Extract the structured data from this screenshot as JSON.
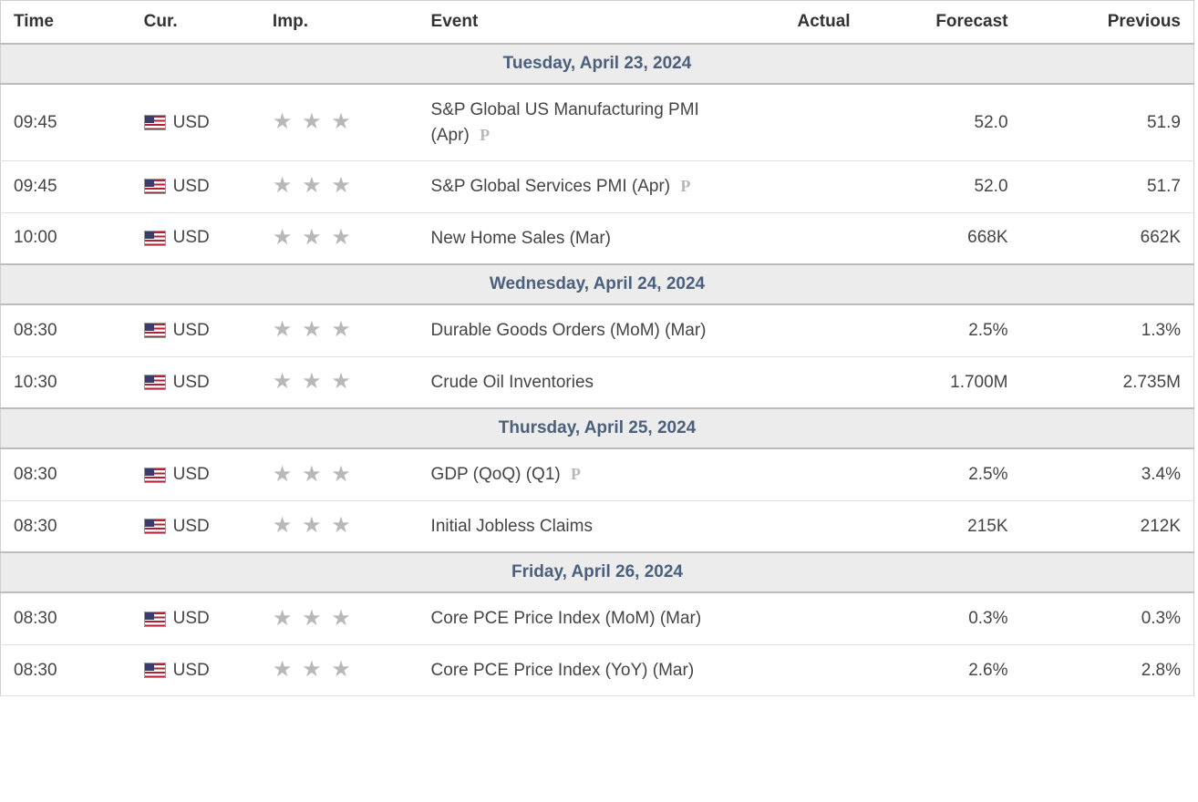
{
  "columns": {
    "time": "Time",
    "cur": "Cur.",
    "imp": "Imp.",
    "event": "Event",
    "actual": "Actual",
    "forecast": "Forecast",
    "previous": "Previous"
  },
  "colors": {
    "header_text": "#333333",
    "date_bg": "#ececec",
    "date_text": "#4b607c",
    "date_border": "#bcbcbc",
    "row_border": "#e0e0e0",
    "cell_text": "#444444",
    "star_color": "#b8b8b8",
    "p_badge_color": "#b8b8b8",
    "flag_red": "#b22234",
    "flag_white": "#ffffff",
    "flag_blue": "#3c3b6e"
  },
  "days": [
    {
      "date": "Tuesday, April 23, 2024",
      "events": [
        {
          "time": "09:45",
          "currency": "USD",
          "importance": 3,
          "event": "S&P Global US Manufacturing PMI (Apr)",
          "preliminary": true,
          "actual": "",
          "forecast": "52.0",
          "previous": "51.9"
        },
        {
          "time": "09:45",
          "currency": "USD",
          "importance": 3,
          "event": "S&P Global Services PMI (Apr)",
          "preliminary": true,
          "actual": "",
          "forecast": "52.0",
          "previous": "51.7"
        },
        {
          "time": "10:00",
          "currency": "USD",
          "importance": 3,
          "event": "New Home Sales (Mar)",
          "preliminary": false,
          "actual": "",
          "forecast": "668K",
          "previous": "662K"
        }
      ]
    },
    {
      "date": "Wednesday, April 24, 2024",
      "events": [
        {
          "time": "08:30",
          "currency": "USD",
          "importance": 3,
          "event": "Durable Goods Orders (MoM) (Mar)",
          "preliminary": false,
          "actual": "",
          "forecast": "2.5%",
          "previous": "1.3%"
        },
        {
          "time": "10:30",
          "currency": "USD",
          "importance": 3,
          "event": "Crude Oil Inventories",
          "preliminary": false,
          "actual": "",
          "forecast": "1.700M",
          "previous": "2.735M"
        }
      ]
    },
    {
      "date": "Thursday, April 25, 2024",
      "events": [
        {
          "time": "08:30",
          "currency": "USD",
          "importance": 3,
          "event": "GDP (QoQ) (Q1)",
          "preliminary": true,
          "actual": "",
          "forecast": "2.5%",
          "previous": "3.4%"
        },
        {
          "time": "08:30",
          "currency": "USD",
          "importance": 3,
          "event": "Initial Jobless Claims",
          "preliminary": false,
          "actual": "",
          "forecast": "215K",
          "previous": "212K"
        }
      ]
    },
    {
      "date": "Friday, April 26, 2024",
      "events": [
        {
          "time": "08:30",
          "currency": "USD",
          "importance": 3,
          "event": "Core PCE Price Index (MoM) (Mar)",
          "preliminary": false,
          "actual": "",
          "forecast": "0.3%",
          "previous": "0.3%"
        },
        {
          "time": "08:30",
          "currency": "USD",
          "importance": 3,
          "event": "Core PCE Price Index (YoY) (Mar)",
          "preliminary": false,
          "actual": "",
          "forecast": "2.6%",
          "previous": "2.8%"
        }
      ]
    }
  ]
}
